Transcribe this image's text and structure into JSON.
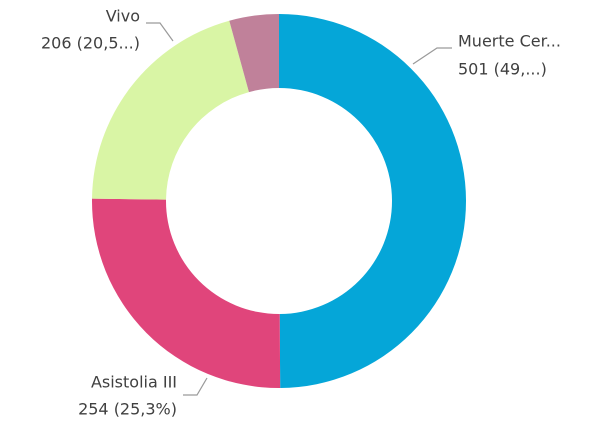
{
  "chart_data": {
    "type": "donut",
    "categories": [
      "Muerte Cer...",
      "Asistolia III",
      "Vivo",
      null
    ],
    "values": [
      501,
      254,
      206,
      43
    ],
    "value_labels": [
      "501 (49,...)",
      "254 (25,3%)",
      "206 (20,5...)",
      null
    ],
    "colors": [
      "#05a6d8",
      "#e0457b",
      "#d9f5a5",
      "#c0819a"
    ]
  }
}
